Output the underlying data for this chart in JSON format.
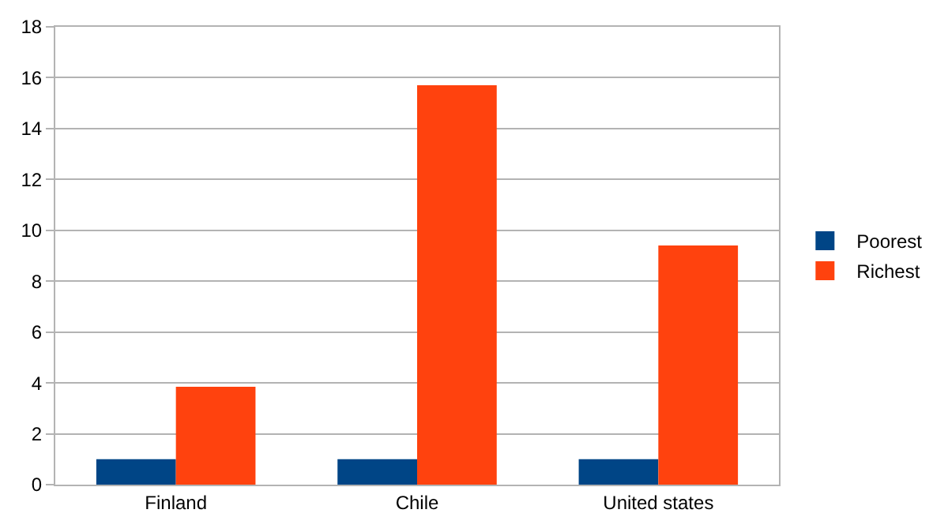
{
  "chart_data": {
    "type": "bar",
    "categories": [
      "Finland",
      "Chile",
      "United states"
    ],
    "series": [
      {
        "name": "Poorest",
        "color": "#004586",
        "values": [
          1,
          1,
          1
        ]
      },
      {
        "name": "Richest",
        "color": "#ff420e",
        "values": [
          3.85,
          15.7,
          9.4
        ]
      }
    ],
    "ylim": [
      0,
      18
    ],
    "yticks": [
      0,
      2,
      4,
      6,
      8,
      10,
      12,
      14,
      16,
      18
    ],
    "grid": "y",
    "legend": "right"
  }
}
